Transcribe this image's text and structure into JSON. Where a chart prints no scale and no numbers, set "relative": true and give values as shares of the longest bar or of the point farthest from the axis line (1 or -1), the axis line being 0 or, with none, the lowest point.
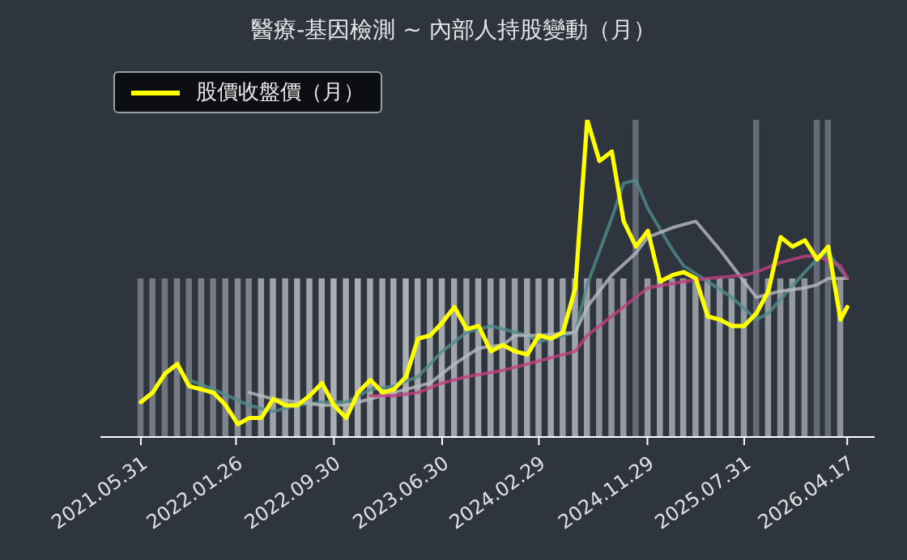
{
  "chart_data": {
    "type": "line",
    "title": "醫療-基因檢測 ~ 內部人持股變動（月）",
    "relative": true,
    "legend": "top left",
    "marker": "none",
    "xlim": [
      "2021-02-18",
      "2026-06-25"
    ],
    "xticks": [
      {
        "value": "2021-05-31",
        "label": "2021.05.31"
      },
      {
        "value": "2022-01-26",
        "label": "2022.01.26"
      },
      {
        "value": "2022-09-30",
        "label": "2022.09.30"
      },
      {
        "value": "2023-06-30",
        "label": "2023.06.30"
      },
      {
        "value": "2024-02-29",
        "label": "2024.02.29"
      },
      {
        "value": "2024-11-29",
        "label": "2024.11.29"
      },
      {
        "value": "2025-07-31",
        "label": "2025.07.31"
      },
      {
        "value": "2026-04-17",
        "label": "2026.04.17"
      }
    ],
    "x": [
      "2021-05-31",
      "2021-06-30",
      "2021-07-31",
      "2021-08-31",
      "2021-09-30",
      "2021-10-31",
      "2021-11-30",
      "2021-12-31",
      "2022-01-31",
      "2022-02-28",
      "2022-03-31",
      "2022-04-30",
      "2022-05-31",
      "2022-06-30",
      "2022-07-31",
      "2022-08-31",
      "2022-09-30",
      "2022-10-31",
      "2022-11-30",
      "2022-12-31",
      "2023-01-31",
      "2023-02-28",
      "2023-03-31",
      "2023-04-30",
      "2023-05-31",
      "2023-06-30",
      "2023-07-31",
      "2023-08-31",
      "2023-09-30",
      "2023-10-31",
      "2023-11-30",
      "2023-12-31",
      "2024-01-31",
      "2024-02-29",
      "2024-03-31",
      "2024-04-30",
      "2024-05-31",
      "2024-06-30",
      "2024-07-31",
      "2024-08-31",
      "2024-09-30",
      "2024-10-31",
      "2024-11-30",
      "2024-12-31",
      "2025-01-31",
      "2025-02-28",
      "2025-03-31",
      "2025-04-30",
      "2025-05-31",
      "2025-06-30",
      "2025-07-31",
      "2025-08-31",
      "2025-09-30",
      "2025-10-31",
      "2025-11-30",
      "2025-12-31",
      "2026-01-31",
      "2026-02-28",
      "2026-03-31",
      "2026-04-17"
    ],
    "series": [
      {
        "type": "bar",
        "color": "#a4a8ae",
        "values": [
          0.5,
          0.5,
          0.5,
          0.5,
          0.5,
          0.5,
          0.5,
          0.5,
          0.5,
          0.5,
          0.5,
          0.5,
          0.5,
          0.5,
          0.5,
          0.5,
          0.5,
          0.5,
          0.5,
          0.5,
          0.5,
          0.5,
          0.5,
          0.5,
          0.5,
          0.5,
          0.5,
          0.5,
          0.5,
          0.5,
          0.5,
          0.5,
          0.5,
          0.5,
          0.5,
          0.5,
          0.5,
          0.5,
          0.5,
          0.5,
          0.5,
          1,
          0.5,
          0.5,
          0.5,
          0.5,
          0.5,
          0.5,
          0.5,
          0.5,
          0.5,
          1,
          0.5,
          0.5,
          0.5,
          0.5,
          1,
          1,
          0.5,
          null
        ],
        "colors": [
          "#6f747d",
          "#747982",
          "#6f747d",
          "#787d86",
          "#6f747d",
          "#7c8189",
          "#747982",
          "#80858d",
          "#878b93",
          "#80858d",
          "#9a9ea5",
          "#a0a4aa",
          "#9a9ea5",
          "#a4a8ae",
          "#a0a4aa",
          "#a4a8ae",
          "#aaaeb3",
          "#a4a8ae",
          "#aaaeb3",
          "#a4a8ae",
          "#a0a4aa",
          "#a4a8ae",
          "#aaaeb3",
          "#a4a8ae",
          "#a0a4aa",
          "#a4a8ae",
          "#a0a4aa",
          "#9a9ea5",
          "#a0a4aa",
          "#9a9ea5",
          "#a0a4aa",
          "#9a9ea5",
          "#a0a4aa",
          "#9a9ea5",
          "#a0a4aa",
          "#9a9ea5",
          "#a0a4aa",
          "#9a9ea5",
          "#8e939a",
          "#8e939a",
          "#959aa1",
          "#656b75",
          "#959aa1",
          "#9a9ea5",
          "#959aa1",
          "#9a9ea5",
          "#959aa1",
          "#9a9ea5",
          "#959aa1",
          "#9a9ea5",
          "#959aa1",
          "#656b75",
          "#959aa1",
          "#8e939a",
          "#959aa1",
          "#8e939a",
          "#656b75",
          "#656b75",
          "#8e939a",
          null
        ]
      },
      {
        "color": "#4f8c8c",
        "x": [
          "2021-09-30",
          "2021-11-30",
          "2022-02-28",
          "2022-04-30",
          "2022-06-30",
          "2022-08-31",
          "2022-10-31",
          "2022-12-31",
          "2023-02-28",
          "2023-04-30",
          "2023-06-30",
          "2023-08-31",
          "2023-10-31",
          "2024-01-31",
          "2024-02-29",
          "2024-05-31",
          "2024-06-30",
          "2024-08-31",
          "2024-09-30",
          "2024-10-31",
          "2024-11-30",
          "2025-01-31",
          "2025-02-28",
          "2025-04-30",
          "2025-06-30",
          "2025-08-31",
          "2025-09-30",
          "2025-12-31",
          "2026-01-31",
          "2026-02-28",
          "2026-04-17"
        ],
        "values": [
          0.18,
          0.15,
          0.1,
          0.08,
          0.1,
          0.11,
          0.11,
          0.15,
          0.16,
          0.19,
          0.27,
          0.33,
          0.35,
          0.32,
          0.3,
          0.33,
          0.48,
          0.69,
          0.8,
          0.81,
          0.72,
          0.59,
          0.54,
          0.49,
          0.44,
          0.37,
          0.39,
          0.52,
          0.56,
          0.58,
          0.5
        ]
      },
      {
        "color": "#b9bdc2",
        "x": [
          "2022-02-28",
          "2022-04-30",
          "2022-08-31",
          "2022-10-31",
          "2022-12-31",
          "2023-02-28",
          "2023-05-31",
          "2023-07-31",
          "2023-09-30",
          "2023-11-30",
          "2023-12-31",
          "2024-02-29",
          "2024-05-31",
          "2024-06-30",
          "2024-08-31",
          "2024-10-31",
          "2024-11-30",
          "2025-01-31",
          "2025-03-31",
          "2025-05-31",
          "2025-07-31",
          "2025-08-31",
          "2025-10-31",
          "2025-12-31",
          "2026-01-31",
          "2026-02-28",
          "2026-04-17"
        ],
        "values": [
          0.14,
          0.12,
          0.1,
          0.1,
          0.12,
          0.14,
          0.17,
          0.23,
          0.28,
          0.29,
          0.32,
          0.32,
          0.33,
          0.41,
          0.51,
          0.58,
          0.63,
          0.66,
          0.68,
          0.59,
          0.49,
          0.44,
          0.46,
          0.47,
          0.48,
          0.5,
          0.5
        ]
      },
      {
        "color": "#c2407f",
        "x": [
          "2022-12-31",
          "2023-02-28",
          "2023-04-30",
          "2023-06-30",
          "2023-08-31",
          "2023-11-30",
          "2024-01-31",
          "2024-03-31",
          "2024-05-31",
          "2024-06-30",
          "2024-09-30",
          "2024-11-30",
          "2025-02-28",
          "2025-04-30",
          "2025-07-31",
          "2025-08-31",
          "2025-10-31",
          "2025-12-31",
          "2026-01-31",
          "2026-03-31",
          "2026-04-17"
        ],
        "values": [
          0.13,
          0.13,
          0.14,
          0.17,
          0.19,
          0.21,
          0.23,
          0.25,
          0.27,
          0.32,
          0.41,
          0.47,
          0.49,
          0.5,
          0.51,
          0.52,
          0.55,
          0.57,
          0.57,
          0.54,
          0.5
        ]
      },
      {
        "name": "股價收盤價（月）",
        "color": "#ffff00",
        "values": [
          0.11,
          0.14,
          0.2,
          0.23,
          0.16,
          0.15,
          0.14,
          0.1,
          0.04,
          0.06,
          0.06,
          0.12,
          0.1,
          0.1,
          0.13,
          0.17,
          0.1,
          0.06,
          0.14,
          0.18,
          0.14,
          0.15,
          0.19,
          0.31,
          0.32,
          0.36,
          0.41,
          0.34,
          0.35,
          0.27,
          0.29,
          0.27,
          0.26,
          0.32,
          0.31,
          0.33,
          0.47,
          1.0,
          0.87,
          0.9,
          0.68,
          0.6,
          0.65,
          0.49,
          0.51,
          0.52,
          0.5,
          0.38,
          0.37,
          0.35,
          0.35,
          0.39,
          0.46,
          0.63,
          0.6,
          0.62,
          0.56,
          0.6,
          0.37,
          0.41
        ]
      }
    ]
  }
}
